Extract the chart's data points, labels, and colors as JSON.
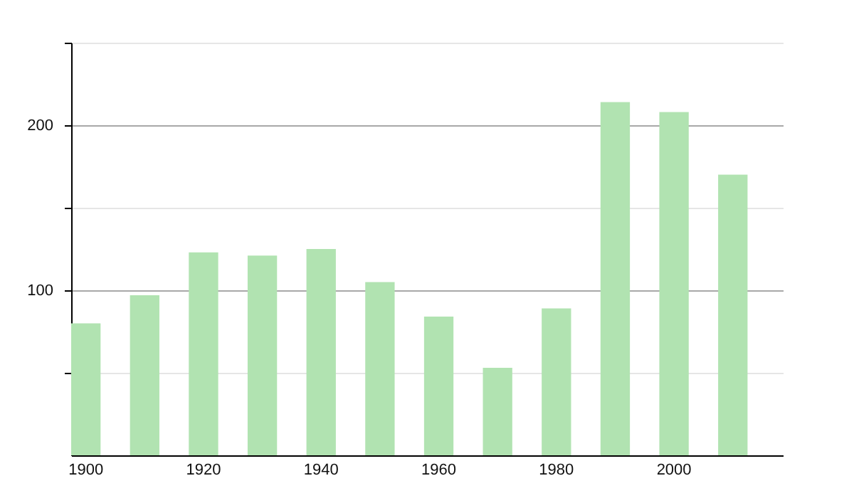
{
  "chart_data": {
    "type": "bar",
    "categories": [
      "1900",
      null,
      "1920",
      null,
      "1940",
      null,
      "1960",
      null,
      "1980",
      null,
      "2000",
      null
    ],
    "values": [
      80,
      97,
      123,
      121,
      125,
      105,
      84,
      53,
      89,
      214,
      208,
      170
    ],
    "color": "#b1e3b1",
    "ylim": [
      0,
      250
    ],
    "yticks": [
      {
        "value": 50,
        "label": null
      },
      100,
      {
        "value": 150,
        "label": null
      },
      200,
      {
        "value": 250,
        "label": null
      }
    ],
    "grid": true
  }
}
